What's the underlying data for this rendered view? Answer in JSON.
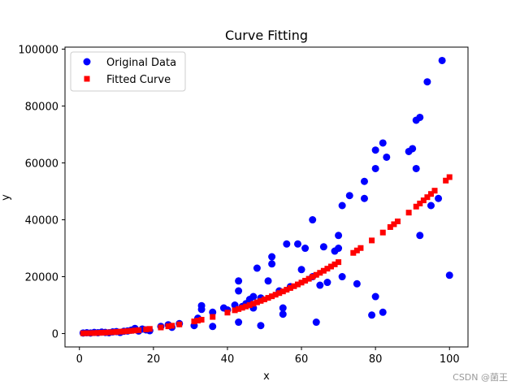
{
  "chart_data": {
    "type": "scatter",
    "title": "Curve Fitting",
    "xlabel": "x",
    "ylabel": "y",
    "xlim": [
      -3.9,
      105
    ],
    "ylim": [
      -4700,
      100700
    ],
    "xticks": [
      0,
      20,
      40,
      60,
      80,
      100
    ],
    "yticks": [
      0,
      20000,
      40000,
      60000,
      80000,
      100000
    ],
    "legend_position": "top-left",
    "series": [
      {
        "name": "Original Data",
        "marker": "circle",
        "color": "#0000ff",
        "points": [
          [
            1,
            200
          ],
          [
            2,
            300
          ],
          [
            3,
            200
          ],
          [
            4,
            400
          ],
          [
            5,
            300
          ],
          [
            6,
            500
          ],
          [
            7,
            400
          ],
          [
            8,
            300
          ],
          [
            9,
            600
          ],
          [
            10,
            700
          ],
          [
            11,
            400
          ],
          [
            12,
            800
          ],
          [
            13,
            900
          ],
          [
            14,
            1200
          ],
          [
            15,
            1800
          ],
          [
            16,
            900
          ],
          [
            17,
            1600
          ],
          [
            18,
            1300
          ],
          [
            19,
            1000
          ],
          [
            22,
            2500
          ],
          [
            24,
            3100
          ],
          [
            25,
            2200
          ],
          [
            27,
            3500
          ],
          [
            31,
            2800
          ],
          [
            32,
            5400
          ],
          [
            33,
            9800
          ],
          [
            33,
            8500
          ],
          [
            36,
            2500
          ],
          [
            36,
            7500
          ],
          [
            39,
            9000
          ],
          [
            40,
            8300
          ],
          [
            42,
            10000
          ],
          [
            43,
            18500
          ],
          [
            43,
            15000
          ],
          [
            43,
            4000
          ],
          [
            44,
            9500
          ],
          [
            45,
            10500
          ],
          [
            46,
            12000
          ],
          [
            47,
            9000
          ],
          [
            47,
            13000
          ],
          [
            48,
            23000
          ],
          [
            49,
            2800
          ],
          [
            49,
            12500
          ],
          [
            51,
            18500
          ],
          [
            52,
            27000
          ],
          [
            52,
            24500
          ],
          [
            54,
            15000
          ],
          [
            55,
            9000
          ],
          [
            55,
            6800
          ],
          [
            56,
            31500
          ],
          [
            57,
            16500
          ],
          [
            59,
            31500
          ],
          [
            60,
            22500
          ],
          [
            61,
            30000
          ],
          [
            63,
            40000
          ],
          [
            63,
            20000
          ],
          [
            64,
            4000
          ],
          [
            65,
            17000
          ],
          [
            66,
            30500
          ],
          [
            67,
            18000
          ],
          [
            69,
            29000
          ],
          [
            70,
            34500
          ],
          [
            70,
            30000
          ],
          [
            71,
            45000
          ],
          [
            71,
            20000
          ],
          [
            73,
            48500
          ],
          [
            75,
            17500
          ],
          [
            77,
            53500
          ],
          [
            77,
            47500
          ],
          [
            79,
            6500
          ],
          [
            80,
            58000
          ],
          [
            80,
            64500
          ],
          [
            80,
            13000
          ],
          [
            82,
            67000
          ],
          [
            82,
            7500
          ],
          [
            83,
            62000
          ],
          [
            89,
            64000
          ],
          [
            90,
            65000
          ],
          [
            91,
            75000
          ],
          [
            91,
            58000
          ],
          [
            92,
            76000
          ],
          [
            92,
            34500
          ],
          [
            94,
            88500
          ],
          [
            95,
            45000
          ],
          [
            97,
            47500
          ],
          [
            98,
            96000
          ],
          [
            100,
            20500
          ]
        ]
      },
      {
        "name": "Fitted Curve",
        "marker": "square",
        "color": "#ff0000",
        "points": [
          [
            1,
            100
          ],
          [
            2,
            130
          ],
          [
            3,
            150
          ],
          [
            4,
            190
          ],
          [
            5,
            240
          ],
          [
            6,
            290
          ],
          [
            7,
            350
          ],
          [
            8,
            420
          ],
          [
            9,
            490
          ],
          [
            10,
            570
          ],
          [
            11,
            660
          ],
          [
            12,
            750
          ],
          [
            13,
            850
          ],
          [
            14,
            960
          ],
          [
            15,
            1080
          ],
          [
            16,
            1200
          ],
          [
            18,
            1480
          ],
          [
            19,
            1640
          ],
          [
            22,
            2150
          ],
          [
            24,
            2550
          ],
          [
            25,
            2760
          ],
          [
            27,
            3220
          ],
          [
            31,
            4260
          ],
          [
            32,
            4560
          ],
          [
            33,
            4870
          ],
          [
            36,
            5860
          ],
          [
            40,
            7370
          ],
          [
            42,
            8190
          ],
          [
            43,
            8630
          ],
          [
            44,
            9080
          ],
          [
            45,
            9530
          ],
          [
            46,
            10000
          ],
          [
            47,
            10490
          ],
          [
            48,
            10990
          ],
          [
            49,
            11500
          ],
          [
            50,
            12020
          ],
          [
            51,
            12560
          ],
          [
            52,
            13110
          ],
          [
            53,
            13670
          ],
          [
            54,
            14240
          ],
          [
            55,
            14820
          ],
          [
            56,
            15420
          ],
          [
            57,
            16030
          ],
          [
            58,
            16650
          ],
          [
            59,
            17280
          ],
          [
            60,
            17930
          ],
          [
            61,
            18590
          ],
          [
            62,
            19260
          ],
          [
            63,
            19950
          ],
          [
            64,
            20650
          ],
          [
            65,
            21360
          ],
          [
            66,
            22080
          ],
          [
            67,
            22820
          ],
          [
            68,
            23570
          ],
          [
            69,
            24340
          ],
          [
            70,
            25120
          ],
          [
            74,
            28370
          ],
          [
            75,
            29220
          ],
          [
            76,
            30080
          ],
          [
            79,
            32740
          ],
          [
            82,
            35520
          ],
          [
            84,
            37450
          ],
          [
            85,
            38440
          ],
          [
            86,
            39440
          ],
          [
            89,
            42520
          ],
          [
            91,
            44640
          ],
          [
            92,
            45730
          ],
          [
            93,
            46830
          ],
          [
            94,
            47950
          ],
          [
            95,
            49080
          ],
          [
            96,
            50230
          ],
          [
            99,
            53780
          ],
          [
            100,
            55000
          ]
        ]
      }
    ]
  },
  "watermark": "CSDN @菌王"
}
